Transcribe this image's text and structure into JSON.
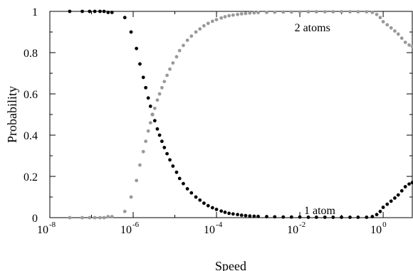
{
  "chart_data": {
    "type": "scatter",
    "title": "",
    "xlabel": "Speed",
    "ylabel": "Probability",
    "xscale": "log",
    "xlim": [
      1e-08,
      5.0
    ],
    "ylim": [
      0,
      1
    ],
    "grid": false,
    "legend": "none",
    "x_ticks": [
      {
        "base": "10",
        "exp": "-8",
        "value": 1e-08
      },
      {
        "base": "10",
        "exp": "-6",
        "value": 1e-06
      },
      {
        "base": "10",
        "exp": "-4",
        "value": 0.0001
      },
      {
        "base": "10",
        "exp": "-2",
        "value": 0.01
      },
      {
        "base": "10",
        "exp": "0",
        "value": 1
      }
    ],
    "y_ticks": [
      {
        "label": "0",
        "value": 0
      },
      {
        "label": "0.2",
        "value": 0.2
      },
      {
        "label": "0.4",
        "value": 0.4
      },
      {
        "label": "0.6",
        "value": 0.6
      },
      {
        "label": "0.8",
        "value": 0.8
      },
      {
        "label": "1",
        "value": 1
      }
    ],
    "annotations": [
      {
        "text": "2 atoms",
        "x": 0.02,
        "y": 0.92
      },
      {
        "text": "1 atom",
        "x": 0.03,
        "y": 0.035
      }
    ],
    "series": [
      {
        "color": "#000000",
        "marker": "circle",
        "x": [
          3e-08,
          6e-08,
          9e-08,
          1.2e-07,
          1.6e-07,
          2e-07,
          2.5e-07,
          3.1e-07,
          6.3e-07,
          8.9e-07,
          1.2e-06,
          1.45e-06,
          1.75e-06,
          2e-06,
          2.3e-06,
          2.6e-06,
          2.9e-06,
          3.3e-06,
          3.8e-06,
          4.3e-06,
          4.9e-06,
          5.6e-06,
          6.5e-06,
          7.6e-06,
          9e-06,
          1.1e-05,
          1.3e-05,
          1.6e-05,
          2e-05,
          2.5e-05,
          3.2e-05,
          4e-05,
          5e-05,
          6.3e-05,
          8e-05,
          0.0001,
          0.00013,
          0.00016,
          0.0002,
          0.00025,
          0.00032,
          0.0004,
          0.0005,
          0.00063,
          0.0008,
          0.001,
          0.0016,
          0.0025,
          0.004,
          0.0063,
          0.01,
          0.016,
          0.025,
          0.04,
          0.063,
          0.1,
          0.16,
          0.25,
          0.4,
          0.55,
          0.7,
          0.85,
          1.0,
          1.25,
          1.55,
          1.9,
          2.3,
          2.8,
          3.4,
          4.2,
          5.0
        ],
        "y": [
          1.0,
          1.0,
          1.0,
          1.0,
          1.0,
          1.0,
          0.995,
          0.995,
          0.97,
          0.9,
          0.82,
          0.745,
          0.68,
          0.63,
          0.58,
          0.54,
          0.5,
          0.47,
          0.43,
          0.4,
          0.37,
          0.34,
          0.31,
          0.28,
          0.25,
          0.22,
          0.19,
          0.165,
          0.14,
          0.12,
          0.1,
          0.085,
          0.07,
          0.058,
          0.048,
          0.04,
          0.032,
          0.026,
          0.021,
          0.018,
          0.015,
          0.012,
          0.01,
          0.008,
          0.007,
          0.006,
          0.005,
          0.004,
          0.003,
          0.003,
          0.003,
          0.002,
          0.002,
          0.002,
          0.002,
          0.002,
          0.002,
          0.002,
          0.002,
          0.005,
          0.015,
          0.03,
          0.05,
          0.065,
          0.08,
          0.095,
          0.11,
          0.13,
          0.15,
          0.163,
          0.17
        ]
      },
      {
        "color": "#999999",
        "marker": "circle",
        "x": [
          3e-08,
          6e-08,
          9e-08,
          1.2e-07,
          1.6e-07,
          2e-07,
          2.5e-07,
          3.1e-07,
          6.3e-07,
          8.9e-07,
          1.2e-06,
          1.45e-06,
          1.75e-06,
          2e-06,
          2.3e-06,
          2.6e-06,
          2.9e-06,
          3.3e-06,
          3.8e-06,
          4.3e-06,
          4.9e-06,
          5.6e-06,
          6.5e-06,
          7.6e-06,
          9e-06,
          1.1e-05,
          1.3e-05,
          1.6e-05,
          2e-05,
          2.5e-05,
          3.2e-05,
          4e-05,
          5e-05,
          6.3e-05,
          8e-05,
          0.0001,
          0.00013,
          0.00016,
          0.0002,
          0.00025,
          0.00032,
          0.0004,
          0.0005,
          0.00063,
          0.0008,
          0.001,
          0.0016,
          0.0025,
          0.004,
          0.0063,
          0.01,
          0.016,
          0.025,
          0.04,
          0.063,
          0.1,
          0.16,
          0.25,
          0.4,
          0.55,
          0.7,
          0.85,
          1.0,
          1.25,
          1.55,
          1.9,
          2.3,
          2.8,
          3.4,
          4.2,
          5.0
        ],
        "y": [
          0.0,
          0.0,
          0.0,
          0.0,
          0.0,
          0.0,
          0.005,
          0.005,
          0.03,
          0.1,
          0.18,
          0.255,
          0.32,
          0.37,
          0.42,
          0.46,
          0.5,
          0.53,
          0.57,
          0.6,
          0.63,
          0.66,
          0.69,
          0.72,
          0.75,
          0.78,
          0.81,
          0.835,
          0.86,
          0.88,
          0.9,
          0.915,
          0.93,
          0.942,
          0.952,
          0.96,
          0.968,
          0.974,
          0.979,
          0.982,
          0.985,
          0.988,
          0.99,
          0.992,
          0.993,
          0.994,
          0.995,
          0.996,
          0.997,
          0.997,
          0.997,
          0.998,
          0.998,
          0.998,
          0.998,
          0.998,
          0.998,
          0.998,
          0.998,
          0.995,
          0.985,
          0.97,
          0.95,
          0.935,
          0.92,
          0.905,
          0.89,
          0.87,
          0.85,
          0.837,
          0.83
        ]
      }
    ]
  }
}
